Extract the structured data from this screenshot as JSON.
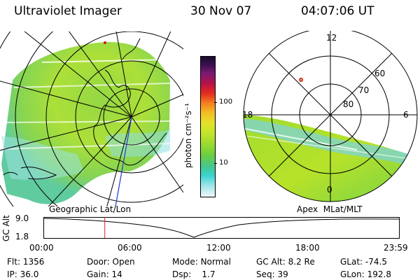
{
  "header": {
    "instrument": "Ultraviolet Imager",
    "date": "30 Nov 07",
    "time": "04:07:06 UT"
  },
  "colorbar": {
    "unit_label": "photon cm⁻²s⁻¹",
    "ticks": [
      "100",
      "10"
    ],
    "scale": "log",
    "colors": [
      "#2a0a3a",
      "#5a1a6e",
      "#a0157a",
      "#d1142b",
      "#f3541d",
      "#f6a221",
      "#eedb2a",
      "#cfe829",
      "#9fdc2f",
      "#66cc3f",
      "#46c78d",
      "#3ad2cd",
      "#8fe3e8",
      "#dff3f6"
    ]
  },
  "left_panel": {
    "caption": "Geographic Lat/Lon"
  },
  "right_panel": {
    "caption": "Apex  MLat/MLT",
    "mlt_labels": [
      "12",
      "18",
      "6",
      "0"
    ],
    "mlat_labels": [
      "60",
      "70",
      "80"
    ]
  },
  "altitude_plot": {
    "ylabel": "GC Alt",
    "yticks": [
      "9.0",
      "1.8"
    ],
    "xticks": [
      "00:00",
      "06:00",
      "12:00",
      "18:00",
      "23:59"
    ],
    "marker_time_hours": 4.12
  },
  "footer": {
    "flt_label": "Flt:",
    "flt_value": "1356",
    "ip_label": "IP:",
    "ip_value": "36.0",
    "door_label": "Door:",
    "door_value": "Open",
    "gain_label": "Gain:",
    "gain_value": "14",
    "mode_label": "Mode:",
    "mode_value": "Normal",
    "dsp_label": "Dsp:",
    "dsp_value": "1.7",
    "gcalt_label": "GC Alt:",
    "gcalt_value": "8.2 Re",
    "seq_label": "Seq:",
    "seq_value": "39",
    "glat_label": "GLat:",
    "glat_value": "-74.5",
    "glon_label": "GLon:",
    "glon_value": "192.8"
  },
  "accent_colors": {
    "marker_line": "#e0201a",
    "track_line": "#1a3ccf"
  }
}
